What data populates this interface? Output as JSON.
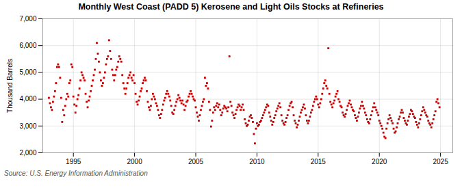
{
  "chart_data": {
    "type": "scatter",
    "title": "Monthly West Coast (PADD 5) Kerosene and Light Oils Stocks at Refineries",
    "ylabel": "Thousand Barrels",
    "source": "Source: U.S. Energy Information Administration",
    "color": "#cc0000",
    "marker": "square",
    "grid": true,
    "xlim": [
      1992.5,
      2026.0
    ],
    "xticks": [
      1995,
      2000,
      2005,
      2010,
      2015,
      2020,
      2025
    ],
    "ylim": [
      2000,
      7000
    ],
    "yticks": [
      {
        "value": 2000,
        "label": "2,000"
      },
      {
        "value": 3000,
        "label": "3,000"
      },
      {
        "value": 4000,
        "label": "4,000"
      },
      {
        "value": 5000,
        "label": "5,000"
      },
      {
        "value": 6000,
        "label": "6,000"
      },
      {
        "value": 7000,
        "label": "7,000"
      }
    ],
    "x": [
      1993.0,
      1993.083,
      1993.167,
      1993.25,
      1993.333,
      1993.417,
      1993.5,
      1993.583,
      1993.667,
      1993.75,
      1993.833,
      1993.917,
      1994.0,
      1994.083,
      1994.167,
      1994.25,
      1994.333,
      1994.417,
      1994.5,
      1994.583,
      1994.667,
      1994.75,
      1994.833,
      1994.917,
      1995.0,
      1995.083,
      1995.167,
      1995.25,
      1995.333,
      1995.417,
      1995.5,
      1995.583,
      1995.667,
      1995.75,
      1995.833,
      1995.917,
      1996.0,
      1996.083,
      1996.167,
      1996.25,
      1996.333,
      1996.417,
      1996.5,
      1996.583,
      1996.667,
      1996.75,
      1996.833,
      1996.917,
      1997.0,
      1997.083,
      1997.167,
      1997.25,
      1997.333,
      1997.417,
      1997.5,
      1997.583,
      1997.667,
      1997.75,
      1997.833,
      1997.917,
      1998.0,
      1998.083,
      1998.167,
      1998.25,
      1998.333,
      1998.417,
      1998.5,
      1998.583,
      1998.667,
      1998.75,
      1998.833,
      1998.917,
      1999.0,
      1999.083,
      1999.167,
      1999.25,
      1999.333,
      1999.417,
      1999.5,
      1999.583,
      1999.667,
      1999.75,
      1999.833,
      1999.917,
      2000.0,
      2000.083,
      2000.167,
      2000.25,
      2000.333,
      2000.417,
      2000.5,
      2000.583,
      2000.667,
      2000.75,
      2000.833,
      2000.917,
      2001.0,
      2001.083,
      2001.167,
      2001.25,
      2001.333,
      2001.417,
      2001.5,
      2001.583,
      2001.667,
      2001.75,
      2001.833,
      2001.917,
      2002.0,
      2002.083,
      2002.167,
      2002.25,
      2002.333,
      2002.417,
      2002.5,
      2002.583,
      2002.667,
      2002.75,
      2002.833,
      2002.917,
      2003.0,
      2003.083,
      2003.167,
      2003.25,
      2003.333,
      2003.417,
      2003.5,
      2003.583,
      2003.667,
      2003.75,
      2003.833,
      2003.917,
      2004.0,
      2004.083,
      2004.167,
      2004.25,
      2004.333,
      2004.417,
      2004.5,
      2004.583,
      2004.667,
      2004.75,
      2004.833,
      2004.917,
      2005.0,
      2005.083,
      2005.167,
      2005.25,
      2005.333,
      2005.417,
      2005.5,
      2005.583,
      2005.667,
      2005.75,
      2005.833,
      2005.917,
      2006.0,
      2006.083,
      2006.167,
      2006.25,
      2006.333,
      2006.417,
      2006.5,
      2006.583,
      2006.667,
      2006.75,
      2006.833,
      2006.917,
      2007.0,
      2007.083,
      2007.167,
      2007.25,
      2007.333,
      2007.417,
      2007.5,
      2007.583,
      2007.667,
      2007.75,
      2007.833,
      2007.917,
      2008.0,
      2008.083,
      2008.167,
      2008.25,
      2008.333,
      2008.417,
      2008.5,
      2008.583,
      2008.667,
      2008.75,
      2008.833,
      2008.917,
      2009.0,
      2009.083,
      2009.167,
      2009.25,
      2009.333,
      2009.417,
      2009.5,
      2009.583,
      2009.667,
      2009.75,
      2009.833,
      2009.917,
      2010.0,
      2010.083,
      2010.167,
      2010.25,
      2010.333,
      2010.417,
      2010.5,
      2010.583,
      2010.667,
      2010.75,
      2010.833,
      2010.917,
      2011.0,
      2011.083,
      2011.167,
      2011.25,
      2011.333,
      2011.417,
      2011.5,
      2011.583,
      2011.667,
      2011.75,
      2011.833,
      2011.917,
      2012.0,
      2012.083,
      2012.167,
      2012.25,
      2012.333,
      2012.417,
      2012.5,
      2012.583,
      2012.667,
      2012.75,
      2012.833,
      2012.917,
      2013.0,
      2013.083,
      2013.167,
      2013.25,
      2013.333,
      2013.417,
      2013.5,
      2013.583,
      2013.667,
      2013.75,
      2013.833,
      2013.917,
      2014.0,
      2014.083,
      2014.167,
      2014.25,
      2014.333,
      2014.417,
      2014.5,
      2014.583,
      2014.667,
      2014.75,
      2014.833,
      2014.917,
      2015.0,
      2015.083,
      2015.167,
      2015.25,
      2015.333,
      2015.417,
      2015.5,
      2015.583,
      2015.667,
      2015.75,
      2015.833,
      2015.917,
      2016.0,
      2016.083,
      2016.167,
      2016.25,
      2016.333,
      2016.417,
      2016.5,
      2016.583,
      2016.667,
      2016.75,
      2016.833,
      2016.917,
      2017.0,
      2017.083,
      2017.167,
      2017.25,
      2017.333,
      2017.417,
      2017.5,
      2017.583,
      2017.667,
      2017.75,
      2017.833,
      2017.917,
      2018.0,
      2018.083,
      2018.167,
      2018.25,
      2018.333,
      2018.417,
      2018.5,
      2018.583,
      2018.667,
      2018.75,
      2018.833,
      2018.917,
      2019.0,
      2019.083,
      2019.167,
      2019.25,
      2019.333,
      2019.417,
      2019.5,
      2019.583,
      2019.667,
      2019.75,
      2019.833,
      2019.917,
      2020.0,
      2020.083,
      2020.167,
      2020.25,
      2020.333,
      2020.417,
      2020.5,
      2020.583,
      2020.667,
      2020.75,
      2020.833,
      2020.917,
      2021.0,
      2021.083,
      2021.167,
      2021.25,
      2021.333,
      2021.417,
      2021.5,
      2021.583,
      2021.667,
      2021.75,
      2021.833,
      2021.917,
      2022.0,
      2022.083,
      2022.167,
      2022.25,
      2022.333,
      2022.417,
      2022.5,
      2022.583,
      2022.667,
      2022.75,
      2022.833,
      2022.917,
      2023.0,
      2023.083,
      2023.167,
      2023.25,
      2023.333,
      2023.417,
      2023.5,
      2023.583,
      2023.667,
      2023.75,
      2023.833,
      2023.917,
      2024.0,
      2024.083,
      2024.167,
      2024.25,
      2024.333,
      2024.417,
      2024.5,
      2024.583,
      2024.667,
      2024.75,
      2024.833,
      2024.917
    ],
    "values": [
      4050,
      3850,
      3700,
      3600,
      3900,
      4100,
      4300,
      4600,
      5200,
      5300,
      5200,
      4800,
      4050,
      3150,
      3600,
      3400,
      3750,
      4000,
      4200,
      4100,
      4600,
      4700,
      5300,
      5200,
      4100,
      3800,
      3500,
      3750,
      4000,
      4150,
      4400,
      4700,
      5000,
      4900,
      4800,
      4700,
      4200,
      3900,
      3700,
      3950,
      4100,
      4300,
      4500,
      4700,
      4900,
      5100,
      5500,
      6100,
      5700,
      5400,
      5000,
      4700,
      4500,
      4600,
      4800,
      5000,
      5300,
      5500,
      5600,
      6200,
      5800,
      5500,
      5100,
      4900,
      4700,
      4900,
      5100,
      5200,
      5400,
      5600,
      5500,
      5400,
      4900,
      4600,
      4400,
      4200,
      4400,
      4600,
      4800,
      4900,
      5000,
      4800,
      4700,
      4900,
      4600,
      4200,
      3900,
      3800,
      3950,
      4100,
      4300,
      4400,
      4600,
      4700,
      4800,
      4700,
      4300,
      3900,
      3700,
      3600,
      3750,
      4000,
      4200,
      4100,
      4000,
      3850,
      3750,
      3600,
      3400,
      3300,
      3450,
      3600,
      3800,
      3950,
      4050,
      4200,
      4300,
      4200,
      4100,
      3950,
      3750,
      3500,
      3450,
      3600,
      3750,
      3900,
      4000,
      4150,
      4050,
      3950,
      3850,
      3950,
      3800,
      3600,
      3750,
      3900,
      3950,
      4100,
      4200,
      4300,
      4200,
      4100,
      4000,
      3950,
      3700,
      3500,
      3350,
      3200,
      3400,
      3600,
      3750,
      3900,
      4000,
      4800,
      4500,
      4600,
      4400,
      3900,
      3600,
      2980,
      3200,
      3500,
      3700,
      3600,
      3750,
      3850,
      3700,
      3800,
      3600,
      3400,
      3500,
      3650,
      3750,
      3700,
      3650,
      3550,
      3700,
      5600,
      3900,
      3750,
      3500,
      3400,
      3300,
      3450,
      3600,
      3700,
      3800,
      3750,
      3600,
      3700,
      3800,
      3600,
      3250,
      3100,
      3000,
      3050,
      3200,
      3350,
      3400,
      3300,
      3150,
      2700,
      2350,
      2900,
      3100,
      3000,
      3050,
      3150,
      3200,
      3300,
      3400,
      3500,
      3600,
      3700,
      3800,
      3750,
      3500,
      3350,
      3200,
      3050,
      3150,
      3300,
      3400,
      3550,
      3650,
      3750,
      3850,
      3700,
      3400,
      3200,
      3100,
      3050,
      3150,
      3300,
      3400,
      3600,
      3750,
      3850,
      3900,
      3700,
      3400,
      3200,
      3100,
      2950,
      3050,
      3200,
      3350,
      3500,
      3600,
      3700,
      3800,
      3650,
      3400,
      3200,
      3100,
      3200,
      3350,
      3500,
      3600,
      3750,
      3900,
      4000,
      4100,
      4000,
      3800,
      3700,
      3850,
      4000,
      4200,
      4400,
      4600,
      4700,
      4500,
      4400,
      5900,
      4200,
      3900,
      3800,
      3700,
      3850,
      3950,
      4100,
      4200,
      4300,
      4000,
      3900,
      3750,
      3700,
      3500,
      3400,
      3350,
      3450,
      3600,
      3750,
      3850,
      3950,
      3800,
      3700,
      3600,
      3550,
      3400,
      3300,
      3200,
      3350,
      3500,
      3650,
      3750,
      3900,
      3750,
      3650,
      3500,
      3400,
      3250,
      3150,
      3100,
      3250,
      3400,
      3550,
      3700,
      3850,
      3700,
      3600,
      3500,
      3400,
      3200,
      3100,
      3000,
      2900,
      2750,
      2600,
      2550,
      2900,
      3100,
      3250,
      3400,
      3300,
      3200,
      3100,
      2900,
      2750,
      2800,
      2950,
      3100,
      3250,
      3350,
      3500,
      3600,
      3500,
      3300,
      3200,
      3100,
      3050,
      3200,
      3350,
      3450,
      3600,
      3550,
      3450,
      3350,
      3300,
      3150,
      3050,
      2950,
      3100,
      3250,
      3400,
      3550,
      3700,
      3600,
      3500,
      3400,
      3350,
      3200,
      3100,
      3050,
      2950,
      3100,
      3250,
      3400,
      3550,
      3900,
      4000,
      3850,
      3700
    ]
  }
}
